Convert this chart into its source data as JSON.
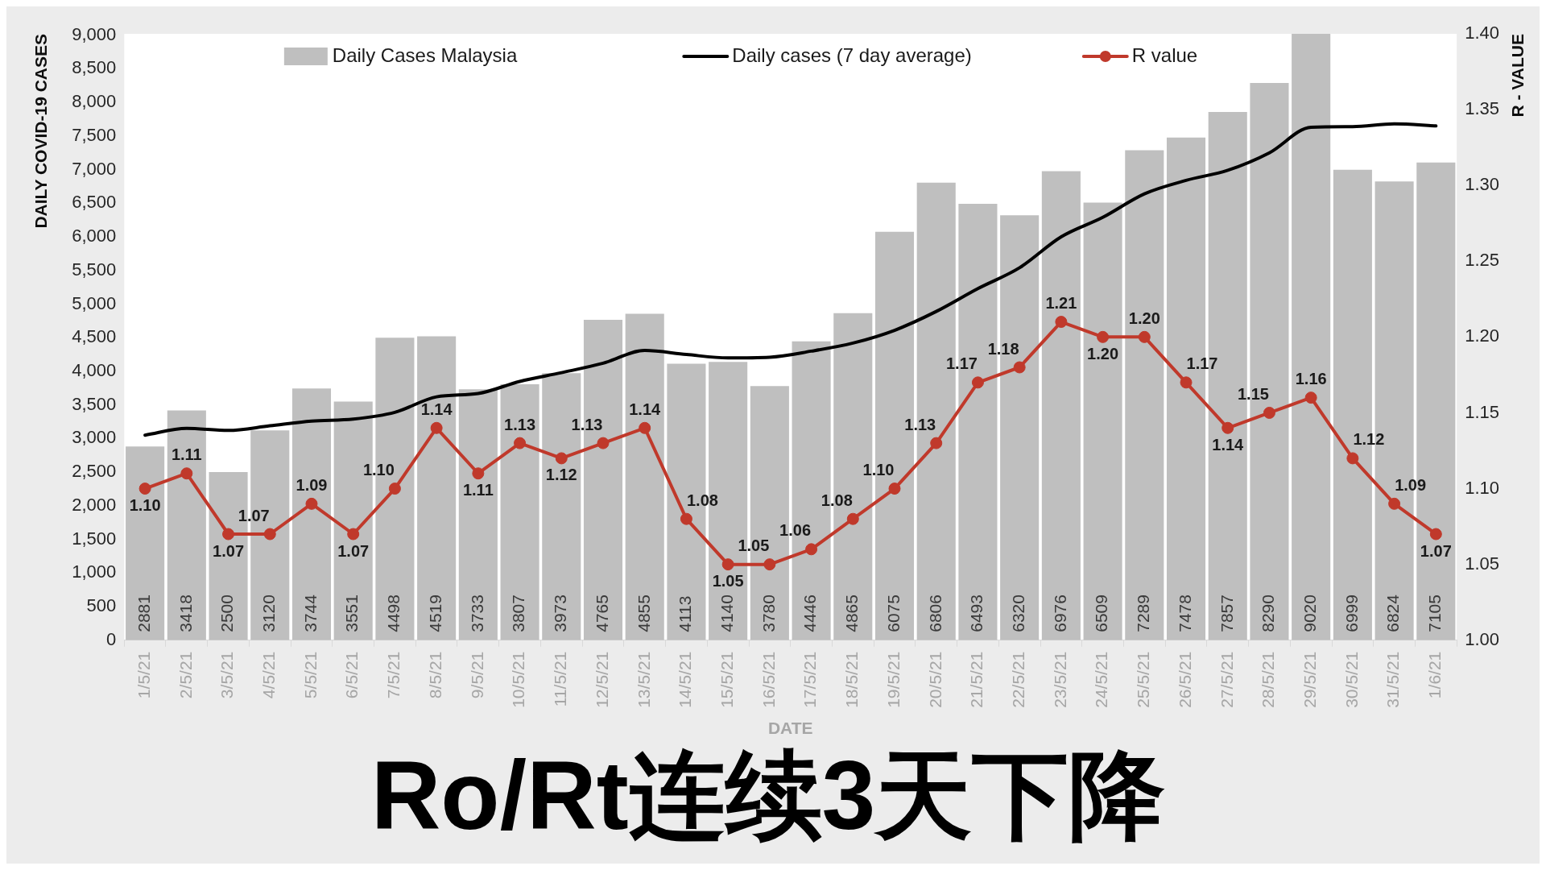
{
  "chart_data": {
    "type": "bar",
    "title": "Ro/Rt连续3天下降",
    "xlabel": "DATE",
    "ylabel": "DAILY COVID-19 CASES",
    "y2label": "R - VALUE",
    "categories": [
      "1/5/21",
      "2/5/21",
      "3/5/21",
      "4/5/21",
      "5/5/21",
      "6/5/21",
      "7/5/21",
      "8/5/21",
      "9/5/21",
      "10/5/21",
      "11/5/21",
      "12/5/21",
      "13/5/21",
      "14/5/21",
      "15/5/21",
      "16/5/21",
      "17/5/21",
      "18/5/21",
      "19/5/21",
      "20/5/21",
      "21/5/21",
      "22/5/21",
      "23/5/21",
      "24/5/21",
      "25/5/21",
      "26/5/21",
      "27/5/21",
      "28/5/21",
      "29/5/21",
      "30/5/21",
      "31/5/21",
      "1/6/21"
    ],
    "series": [
      {
        "name": "Daily Cases Malaysia",
        "color": "#bfbfbf",
        "values": [
          2881,
          3418,
          2500,
          3120,
          3744,
          3551,
          4498,
          4519,
          3733,
          3807,
          3973,
          4765,
          4855,
          4113,
          4140,
          3780,
          4446,
          4865,
          6075,
          6806,
          6493,
          6320,
          6976,
          6509,
          7289,
          7478,
          7857,
          8290,
          9020,
          6999,
          6824,
          7105
        ],
        "value_labels": [
          "2881",
          "3418",
          "2500",
          "3120",
          "3744",
          "3551",
          "4498",
          "4519",
          "3733",
          "3807",
          "3973",
          "4765",
          "4855",
          "4113",
          "4140",
          "3780",
          "4446",
          "4865",
          "6075",
          "6806",
          "6493",
          "6320",
          "6976",
          "6509",
          "7289",
          "7478",
          "7857",
          "8290",
          "9020",
          "6999",
          "6824",
          "7105"
        ]
      },
      {
        "name": "Daily cases (7 day average)",
        "type": "line",
        "color": "#000000",
        "values": [
          3050,
          3150,
          3120,
          3190,
          3260,
          3290,
          3390,
          3620,
          3670,
          3850,
          3980,
          4120,
          4310,
          4250,
          4200,
          4210,
          4300,
          4420,
          4610,
          4890,
          5230,
          5540,
          6000,
          6290,
          6640,
          6840,
          6990,
          7250,
          7630,
          7640,
          7680,
          7650
        ]
      },
      {
        "name": "R value",
        "type": "line",
        "axis": "y2",
        "color": "#c0392b",
        "marker": "circle",
        "values": [
          1.1,
          1.11,
          1.07,
          1.07,
          1.09,
          1.07,
          1.1,
          1.14,
          1.11,
          1.13,
          1.12,
          1.13,
          1.14,
          1.08,
          1.05,
          1.05,
          1.06,
          1.08,
          1.1,
          1.13,
          1.17,
          1.18,
          1.21,
          1.2,
          1.2,
          1.17,
          1.14,
          1.15,
          1.16,
          1.12,
          1.09,
          1.07
        ],
        "value_labels": [
          "1.10",
          "1.11",
          "1.07",
          "1.07",
          "1.09",
          "1.07",
          "1.10",
          "1.14",
          "1.11",
          "1.13",
          "1.12",
          "1.13",
          "1.14",
          "1.08",
          "1.05",
          "1.05",
          "1.06",
          "1.08",
          "1.10",
          "1.13",
          "1.17",
          "1.18",
          "1.21",
          "1.20",
          "1.20",
          "1.17",
          "1.14",
          "1.15",
          "1.16",
          "1.12",
          "1.09",
          "1.07"
        ]
      }
    ],
    "ylim": [
      0,
      9020
    ],
    "yticks": [
      0,
      500,
      {
        "value": 1000,
        "label": "1,000"
      },
      {
        "value": 1500,
        "label": "1,500"
      },
      {
        "value": 2000,
        "label": "2,000"
      },
      {
        "value": 2500,
        "label": "2,500"
      },
      {
        "value": 3000,
        "label": "3,000"
      },
      {
        "value": 3500,
        "label": "3,500"
      },
      {
        "value": 4000,
        "label": "4,000"
      },
      {
        "value": 4500,
        "label": "4,500"
      },
      {
        "value": 5000,
        "label": "5,000"
      },
      {
        "value": 5500,
        "label": "5,500"
      },
      {
        "value": 6000,
        "label": "6,000"
      },
      {
        "value": 6500,
        "label": "6,500"
      },
      {
        "value": 7000,
        "label": "7,000"
      },
      {
        "value": 7500,
        "label": "7,500"
      },
      {
        "value": 8000,
        "label": "8,000"
      },
      {
        "value": 8500,
        "label": "8,500"
      },
      {
        "value": 9000,
        "label": "9,000"
      }
    ],
    "y2lim": [
      1,
      1.4
    ],
    "y2ticks": [
      {
        "value": 1,
        "label": "1.00"
      },
      1.05,
      {
        "value": 1.1,
        "label": "1.10"
      },
      1.15,
      {
        "value": 1.2,
        "label": "1.20"
      },
      1.25,
      {
        "value": 1.3,
        "label": "1.30"
      },
      1.35,
      {
        "value": 1.4,
        "label": "1.40"
      }
    ],
    "legend": "top"
  }
}
